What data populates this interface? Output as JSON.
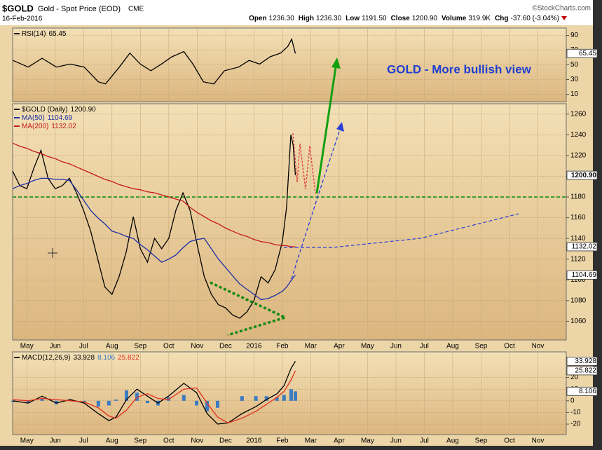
{
  "header": {
    "symbol": "$GOLD",
    "name": "Gold - Spot Price (EOD)",
    "exchange": "CME",
    "date": "16-Feb-2016",
    "source": "©StockCharts.com",
    "quote": [
      {
        "label": "Open",
        "value": "1236.30"
      },
      {
        "label": "High",
        "value": "1236.30"
      },
      {
        "label": "Low",
        "value": "1191.50"
      },
      {
        "label": "Close",
        "value": "1200.90"
      },
      {
        "label": "Volume",
        "value": "319.9K"
      },
      {
        "label": "Chg",
        "value": "-37.60 (-3.04%)"
      }
    ]
  },
  "chart_data": [
    {
      "type": "line",
      "xlim": [
        -0.5,
        19
      ],
      "ylim": [
        0,
        100
      ],
      "yticks": [
        10,
        30,
        50,
        70,
        90
      ],
      "grid": true,
      "x": [
        -0.49,
        0.05,
        0.54,
        1.04,
        1.53,
        2.02,
        2.52,
        2.77,
        3.26,
        3.63,
        4.0,
        4.37,
        4.74,
        5.11,
        5.53,
        5.85,
        6.22,
        6.59,
        6.96,
        7.46,
        7.83,
        8.2,
        8.57,
        8.94,
        9.19,
        9.33,
        9.46
      ],
      "series": [
        {
          "name": "RSI(14)",
          "color": "#000000",
          "last_label": "65.45",
          "values": [
            56,
            47,
            59,
            47,
            51,
            47,
            27,
            24,
            47,
            66,
            51,
            42,
            51,
            61,
            68,
            51,
            27,
            24,
            42,
            47,
            56,
            51,
            61,
            66,
            75,
            85,
            65.45
          ]
        }
      ]
    },
    {
      "type": "line",
      "annotation": "GOLD -  More bullish view",
      "xlim": [
        -0.5,
        19
      ],
      "ylim": [
        1042,
        1270
      ],
      "yticks": [
        1060,
        1080,
        1100,
        1120,
        1140,
        1160,
        1180,
        1200,
        1220,
        1240,
        1260
      ],
      "grid": true,
      "levels": [
        {
          "value": 1180,
          "color": "#109010"
        }
      ],
      "xticks": [
        {
          "value": 0,
          "label": "May"
        },
        {
          "value": 1,
          "label": "Jun"
        },
        {
          "value": 2,
          "label": "Jul"
        },
        {
          "value": 3,
          "label": "Aug"
        },
        {
          "value": 4,
          "label": "Sep"
        },
        {
          "value": 5,
          "label": "Oct"
        },
        {
          "value": 6,
          "label": "Nov"
        },
        {
          "value": 7,
          "label": "Dec"
        },
        {
          "value": 8,
          "label": "2016"
        },
        {
          "value": 9,
          "label": "Feb"
        },
        {
          "value": 10,
          "label": "Mar"
        },
        {
          "value": 11,
          "label": "Apr"
        },
        {
          "value": 12,
          "label": "May"
        },
        {
          "value": 13,
          "label": "Jun"
        },
        {
          "value": 14,
          "label": "Jul"
        },
        {
          "value": 15,
          "label": "Aug"
        },
        {
          "value": 16,
          "label": "Sep"
        },
        {
          "value": 17,
          "label": "Oct"
        },
        {
          "value": 18,
          "label": "Nov"
        }
      ],
      "x": [
        -0.5,
        -0.25,
        0,
        0.25,
        0.5,
        0.75,
        1,
        1.25,
        1.5,
        1.75,
        2,
        2.25,
        2.5,
        2.75,
        3,
        3.25,
        3.5,
        3.75,
        4,
        4.25,
        4.5,
        4.75,
        5,
        5.25,
        5.5,
        5.75,
        6,
        6.25,
        6.5,
        6.75,
        7,
        7.25,
        7.5,
        7.75,
        8,
        8.25,
        8.5,
        8.75,
        9,
        9.15,
        9.3,
        9.38,
        9.46
      ],
      "series": [
        {
          "name": "$GOLD (Daily)",
          "color": "#000000",
          "last_label": "1200.90",
          "values": [
            1205,
            1191,
            1188,
            1208,
            1225,
            1198,
            1188,
            1191,
            1198,
            1184,
            1167,
            1147,
            1120,
            1093,
            1086,
            1103,
            1127,
            1161,
            1130,
            1117,
            1140,
            1130,
            1140,
            1167,
            1184,
            1167,
            1134,
            1103,
            1086,
            1076,
            1073,
            1066,
            1063,
            1069,
            1080,
            1103,
            1097,
            1110,
            1137,
            1170,
            1240,
            1230,
            1200.9
          ]
        },
        {
          "name": "MA(50)",
          "color": "#1c2fa8",
          "last_label": "1104.69",
          "values": [
            1188,
            1191,
            1193,
            1196,
            1198,
            1198,
            1197,
            1197,
            1196,
            1187,
            1177,
            1167,
            1160,
            1154,
            1147,
            1145,
            1142,
            1140,
            1134,
            1129,
            1123,
            1117,
            1120,
            1124,
            1131,
            1137,
            1139,
            1140,
            1130,
            1120,
            1112,
            1104,
            1096,
            1091,
            1086,
            1081,
            1082,
            1085,
            1089,
            1093,
            1099,
            1102,
            1104.69
          ]
        },
        {
          "name": "MA(200)",
          "color": "#c41818",
          "last_label": "1132.02",
          "values": [
            1232,
            1229,
            1227,
            1224,
            1222,
            1219,
            1217,
            1214,
            1212,
            1209,
            1206,
            1203,
            1200,
            1197,
            1195,
            1192,
            1190,
            1188,
            1187,
            1185,
            1184,
            1182,
            1180,
            1178,
            1176,
            1170,
            1165,
            1161,
            1157,
            1154,
            1150,
            1147,
            1144,
            1142,
            1139,
            1137,
            1136,
            1134,
            1133,
            1133,
            1132,
            1132,
            1132.02
          ]
        }
      ]
    },
    {
      "type": "line",
      "xlim": [
        -0.5,
        19
      ],
      "ylim": [
        -29,
        42
      ],
      "yticks": [
        -20,
        -10,
        0,
        10,
        20
      ],
      "grid": true,
      "xticks": [
        {
          "value": 0,
          "label": "May"
        },
        {
          "value": 1,
          "label": "Jun"
        },
        {
          "value": 2,
          "label": "Jul"
        },
        {
          "value": 3,
          "label": "Aug"
        },
        {
          "value": 4,
          "label": "Sep"
        },
        {
          "value": 5,
          "label": "Oct"
        },
        {
          "value": 6,
          "label": "Nov"
        },
        {
          "value": 7,
          "label": "Dec"
        },
        {
          "value": 8,
          "label": "2016"
        },
        {
          "value": 9,
          "label": "Feb"
        },
        {
          "value": 10,
          "label": "Mar"
        },
        {
          "value": 11,
          "label": "Apr"
        },
        {
          "value": 12,
          "label": "May"
        },
        {
          "value": 13,
          "label": "Jun"
        },
        {
          "value": 14,
          "label": "Jul"
        },
        {
          "value": 15,
          "label": "Aug"
        },
        {
          "value": 16,
          "label": "Sep"
        },
        {
          "value": 17,
          "label": "Oct"
        },
        {
          "value": 18,
          "label": "Nov"
        }
      ],
      "x": [
        -0.49,
        0.05,
        0.54,
        1.04,
        1.53,
        2.02,
        2.52,
        2.89,
        3.14,
        3.51,
        3.88,
        4.25,
        4.62,
        4.99,
        5.53,
        5.98,
        6.35,
        6.72,
        7.09,
        7.58,
        8.07,
        8.44,
        8.81,
        9.06,
        9.31,
        9.46
      ],
      "series": [
        {
          "type": "bar",
          "color": "#3b7cc0",
          "last_label": "8.106",
          "values": [
            -1,
            -2,
            2,
            -3,
            1,
            -1,
            -5,
            -4,
            1,
            9,
            7,
            -2,
            -4,
            3,
            5,
            -4,
            -9,
            -6,
            0,
            4,
            4,
            4,
            3,
            5,
            10,
            8.106
          ]
        },
        {
          "name": "MACD(12,26,9)",
          "color": "#000000",
          "last_label": "33.928",
          "values": [
            0,
            -2,
            4,
            -2,
            1,
            -2,
            -11,
            -17,
            -14,
            1,
            10,
            4,
            -2,
            4,
            15,
            7,
            -11,
            -20,
            -19,
            -11,
            -5,
            1,
            6,
            13,
            28,
            33.928
          ]
        },
        {
          "color": "#e0301e",
          "last_label": "25.822",
          "values": [
            1,
            0,
            2,
            1,
            0,
            -1,
            -6,
            -13,
            -15,
            -8,
            3,
            6,
            2,
            1,
            10,
            11,
            -2,
            -14,
            -19,
            -15,
            -9,
            -3,
            3,
            8,
            18,
            25.822
          ]
        }
      ]
    }
  ]
}
